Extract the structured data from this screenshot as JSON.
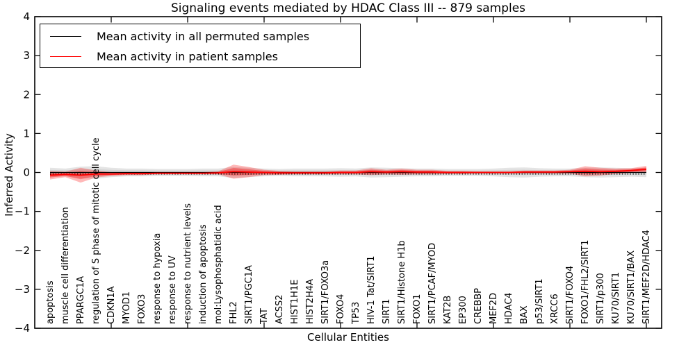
{
  "title": "Signaling events mediated by HDAC Class III -- 879 samples",
  "axes": {
    "x_label": "Cellular Entities",
    "y_label": "Inferred Activity",
    "y_tick_labels": [
      "4",
      "3",
      "2",
      "1",
      "0",
      "−1",
      "−2",
      "−3",
      "−4"
    ],
    "y_tick_values": [
      4,
      3,
      2,
      1,
      0,
      -1,
      -2,
      -3,
      -4
    ]
  },
  "legend": {
    "items": [
      {
        "label": "Mean activity in all permuted samples",
        "color": "#000000"
      },
      {
        "label": "Mean activity in patient samples",
        "color": "#ff0000"
      }
    ]
  },
  "colors": {
    "permuted_line": "#000000",
    "patient_line": "#ff0000",
    "permuted_band": "#c9c9c9",
    "patient_band": "#ff0000",
    "frame": "#000000"
  },
  "chart_data": {
    "type": "line",
    "title": "Signaling events mediated by HDAC Class III -- 879 samples",
    "xlabel": "Cellular Entities",
    "ylabel": "Inferred Activity",
    "ylim": [
      -4,
      4
    ],
    "grid": false,
    "legend_position": "upper left",
    "x_major_ticks_every": 5,
    "x_major_tick_positions": [
      5,
      10,
      15,
      20,
      25,
      30,
      35,
      40
    ],
    "dotted_reference": -0.04,
    "categories": [
      "apoptosis",
      "muscle cell differentiation",
      "PPARGC1A",
      "regulation of S phase of mitotic cell cycle",
      "CDKN1A",
      "MYOD1",
      "FOXO3",
      "response to hypoxia",
      "response to UV",
      "response to nutrient levels",
      "induction of apoptosis",
      "mol:Lysophosphatidic acid",
      "FHL2",
      "SIRT1/PGC1A",
      "TAT",
      "ACSS2",
      "HIST1H1E",
      "HIST2H4A",
      "SIRT1/FOXO3a",
      "FOXO4",
      "TP53",
      "HIV-1 Tat/SIRT1",
      "SIRT1",
      "SIRT1/Histone H1b",
      "FOXO1",
      "SIRT1/PCAF/MYOD",
      "KAT2B",
      "EP300",
      "CREBBP",
      "MEF2D",
      "HDAC4",
      "BAX",
      "p53/SIRT1",
      "XRCC6",
      "SIRT1/FOXO4",
      "FOXO1/FHL2/SIRT1",
      "SIRT1/p300",
      "KU70/SIRT1",
      "KU70/SIRT1/BAX",
      "SIRT1/MEF2D/HDAC4"
    ],
    "series": [
      {
        "name": "Mean activity in all permuted samples",
        "color": "#000000",
        "values": [
          0,
          0,
          0,
          0,
          0,
          0,
          0,
          0,
          0,
          0,
          0,
          0,
          0,
          0,
          0,
          0,
          0,
          0,
          0,
          0,
          0,
          0,
          0,
          0,
          0,
          0,
          0,
          0,
          0,
          0,
          0,
          0,
          0,
          0,
          0,
          0,
          0,
          0,
          0,
          0
        ]
      },
      {
        "name": "Mean activity in patient samples",
        "color": "#ff0000",
        "values": [
          -0.07,
          -0.05,
          -0.07,
          -0.04,
          -0.04,
          -0.03,
          -0.03,
          -0.02,
          -0.02,
          -0.02,
          -0.02,
          -0.01,
          0.02,
          0.01,
          0,
          -0.01,
          -0.01,
          -0.01,
          -0.01,
          0,
          0,
          0.02,
          0.01,
          0.02,
          0.01,
          0.01,
          0,
          0,
          0,
          0,
          0,
          0.01,
          0.01,
          0.01,
          0.02,
          0.03,
          0.02,
          0.03,
          0.05,
          0.08
        ]
      }
    ],
    "bands": [
      {
        "name": "permuted samples spread",
        "color": "#c9c9c9",
        "center_series": 0,
        "halfwidths": [
          0.12,
          0.1,
          0.15,
          0.16,
          0.12,
          0.1,
          0.1,
          0.09,
          0.09,
          0.09,
          0.1,
          0.1,
          0.14,
          0.12,
          0.1,
          0.09,
          0.1,
          0.1,
          0.1,
          0.11,
          0.1,
          0.13,
          0.12,
          0.11,
          0.1,
          0.1,
          0.09,
          0.09,
          0.09,
          0.1,
          0.12,
          0.13,
          0.11,
          0.1,
          0.1,
          0.12,
          0.13,
          0.12,
          0.11,
          0.12
        ]
      },
      {
        "name": "patient samples spread",
        "color": "#ff0000",
        "center_series": 1,
        "halfwidths": [
          0.11,
          0.07,
          0.19,
          0.09,
          0.05,
          0.04,
          0.04,
          0.03,
          0.03,
          0.03,
          0.03,
          0.04,
          0.18,
          0.13,
          0.07,
          0.05,
          0.04,
          0.04,
          0.04,
          0.05,
          0.05,
          0.09,
          0.06,
          0.08,
          0.06,
          0.06,
          0.04,
          0.04,
          0.03,
          0.03,
          0.03,
          0.04,
          0.04,
          0.04,
          0.05,
          0.13,
          0.1,
          0.07,
          0.06,
          0.09
        ]
      }
    ]
  }
}
